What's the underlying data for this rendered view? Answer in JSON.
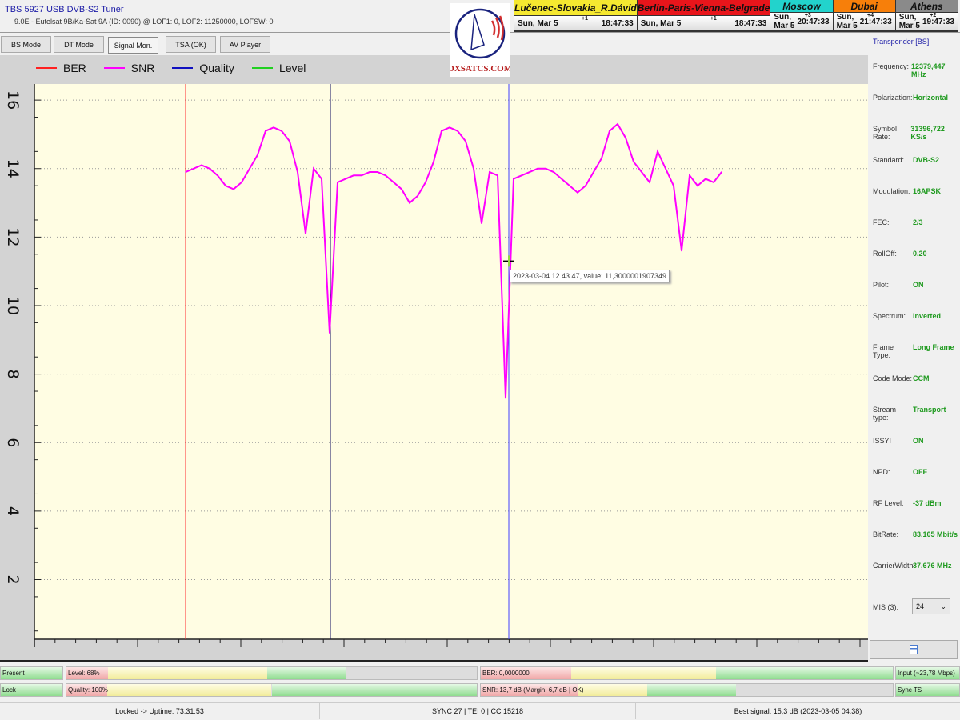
{
  "app": {
    "title": "TBS 5927 USB DVB-S2 Tuner",
    "subtitle": "9.0E - Eutelsat 9B/Ka-Sat 9A (ID: 0090) @ LOF1: 0, LOF2: 11250000, LOFSW: 0"
  },
  "tabs": [
    {
      "label": "BS Mode"
    },
    {
      "label": "DT Mode"
    },
    {
      "label": "Signal Mon.",
      "active": true
    },
    {
      "label": "TSA (OK)"
    },
    {
      "label": "AV Player"
    }
  ],
  "logo": {
    "text": "DXSATCS.COM"
  },
  "clocks": [
    {
      "name": "Lučenec-Slovakia_R.Dávid",
      "date": "Sun, Mar 5",
      "offset": "+1",
      "time": "18:47:33",
      "bg": "#f5e830",
      "fg": "#111"
    },
    {
      "name": "Berlin-Paris-Vienna-Belgrade",
      "date": "Sun, Mar 5",
      "offset": "+1",
      "time": "18:47:33",
      "bg": "#e8151b",
      "fg": "#111"
    },
    {
      "name": "Moscow",
      "date": "Sun, Mar 5",
      "offset": "+3",
      "time": "20:47:33",
      "bg": "#22d3cc",
      "fg": "#111"
    },
    {
      "name": "Dubai",
      "date": "Sun, Mar 5",
      "offset": "+4",
      "time": "21:47:33",
      "bg": "#f77f0a",
      "fg": "#111"
    },
    {
      "name": "Athens",
      "date": "Sun, Mar 5",
      "offset": "+2",
      "time": "19:47:33",
      "bg": "#8a8a8a",
      "fg": "#111"
    }
  ],
  "chart_data": {
    "type": "line",
    "legend": [
      {
        "name": "BER",
        "color": "#ff2020"
      },
      {
        "name": "SNR",
        "color": "#ff00ff"
      },
      {
        "name": "Quality",
        "color": "#1010c0"
      },
      {
        "name": "Level",
        "color": "#20d020"
      }
    ],
    "legend_placement": "top-left",
    "ylim": [
      0.26,
      16.47
    ],
    "yticks": [
      "16",
      "14",
      "12",
      "10",
      "8",
      "6",
      "4",
      "2"
    ],
    "ytick_values": [
      16,
      14,
      12,
      10,
      8,
      6,
      4,
      2
    ],
    "grid": true,
    "background": "#fffde3",
    "series": [
      {
        "name": "SNR",
        "color": "#ff00ff",
        "values": [
          13.9,
          14.0,
          14.1,
          14.0,
          13.8,
          13.5,
          13.4,
          13.6,
          14.0,
          14.4,
          15.1,
          15.2,
          15.1,
          14.8,
          13.9,
          12.1,
          14.0,
          13.7,
          9.2,
          13.6,
          13.7,
          13.8,
          13.8,
          13.9,
          13.9,
          13.8,
          13.6,
          13.4,
          13.0,
          13.2,
          13.6,
          14.2,
          15.1,
          15.2,
          15.1,
          14.8,
          14.0,
          12.4,
          13.9,
          13.8,
          7.3,
          13.7,
          13.8,
          13.9,
          14.0,
          14.0,
          13.9,
          13.7,
          13.5,
          13.3,
          13.5,
          13.9,
          14.3,
          15.1,
          15.3,
          14.9,
          14.2,
          13.9,
          13.6,
          14.5,
          14.0,
          13.5,
          11.6,
          13.8,
          13.5,
          13.7,
          13.6,
          13.9
        ]
      }
    ],
    "markers": [
      {
        "name": "BER",
        "color": "#ff3030",
        "sample": 0
      },
      {
        "name": "Quality",
        "color": "#101060",
        "sample": 18.1
      },
      {
        "name": "cursor",
        "color": "#4040ff",
        "sample": 40.4
      }
    ],
    "cursor": {
      "value": 11.3,
      "tooltip": "2023-03-04 12.43.47, value: 11,3000001907349"
    }
  },
  "panel": {
    "title": "Transponder [BS]",
    "rows": [
      {
        "k": "Frequency:",
        "v": "12379,447 MHz"
      },
      {
        "k": "Polarization:",
        "v": "Horizontal"
      },
      {
        "k": "Symbol Rate:",
        "v": "31396,722 KS/s"
      },
      {
        "k": "Standard:",
        "v": "DVB-S2"
      },
      {
        "k": "Modulation:",
        "v": "16APSK"
      },
      {
        "k": "FEC:",
        "v": "2/3"
      },
      {
        "k": "RollOff:",
        "v": "0.20"
      },
      {
        "k": "Pilot:",
        "v": "ON"
      },
      {
        "k": "Spectrum:",
        "v": "Inverted"
      },
      {
        "k": "Frame Type:",
        "v": "Long Frame"
      },
      {
        "k": "Code Mode:",
        "v": "CCM"
      },
      {
        "k": "Stream type:",
        "v": "Transport"
      },
      {
        "k": "ISSYI",
        "v": "ON"
      },
      {
        "k": "NPD:",
        "v": "OFF"
      },
      {
        "k": "RF Level:",
        "v": "-37 dBm"
      },
      {
        "k": "BitRate:",
        "v": "83,105 Mbit/s"
      },
      {
        "k": "CarrierWidth:",
        "v": "37,676 MHz"
      }
    ],
    "mis_label": "MIS (3):",
    "mis_value": "24"
  },
  "meters": {
    "present": "Present",
    "lock": "Lock",
    "level": {
      "label": "Level: 68%",
      "percent": 68
    },
    "quality": {
      "label": "Quality: 100%",
      "percent": 100
    },
    "ber": {
      "label": "BER: 0,0000000",
      "percent": 100
    },
    "snr": {
      "label": "SNR: 13,7 dB (Margin: 6,7 dB | OK)",
      "percent": 62
    },
    "input": "Input (~23,78 Mbps)",
    "sync": "Sync TS"
  },
  "status": {
    "uptime": "Locked -> Uptime: 73:31:53",
    "sync": "SYNC 27 | TEI 0 | CC 15218",
    "best": "Best signal: 15,3 dB (2023-03-05 04:38)"
  }
}
